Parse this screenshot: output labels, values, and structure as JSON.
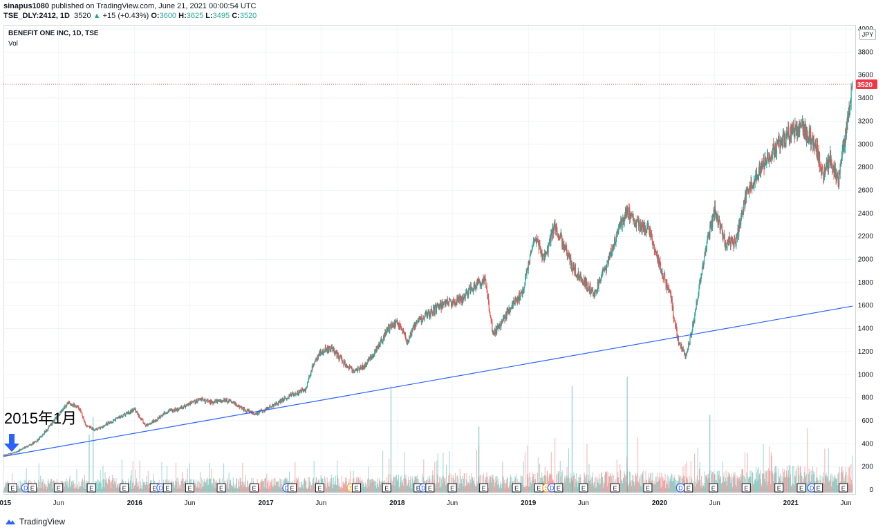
{
  "header": {
    "publisher": "sinapus1080",
    "published_text": "published on TradingView.com, June 21, 2021 00:00:54 UTC",
    "ticker": "TSE_DLY:2412, 1D",
    "last": "3520",
    "change": "+15 (+0.43%)",
    "o_label": "O:",
    "o": "3600",
    "h_label": "H:",
    "h": "3625",
    "l_label": "L:",
    "l": "3495",
    "c_label": "C:",
    "c": "3520"
  },
  "chart_title": "BENEFIT ONE INC, 1D, TSE",
  "vol_label": "Vol",
  "currency": "JPY",
  "annotation": "2015年1月",
  "branding": "TradingView",
  "colors": {
    "up": "#26a69a",
    "down": "#ef5350",
    "trendline": "#2962ff",
    "last_price": "#f23645",
    "arrow": "#2962ff",
    "earnings": "#131722",
    "dividend": "#2962ff",
    "split": "#ff9800"
  },
  "chart_data": {
    "type": "line",
    "title": "BENEFIT ONE INC, 1D, TSE",
    "ylim": [
      0,
      4000
    ],
    "y_ticks": [
      0,
      200,
      400,
      600,
      800,
      1000,
      1200,
      1400,
      1600,
      1800,
      2000,
      2200,
      2400,
      2600,
      2800,
      3000,
      3200,
      3400,
      3600,
      3800,
      4000
    ],
    "last_price": 3520,
    "x_tick_labels": [
      "2015",
      "Jun",
      "2016",
      "Jun",
      "2017",
      "Jun",
      "2018",
      "Jun",
      "2019",
      "Jun",
      "2020",
      "Jun",
      "2021",
      "Jun"
    ],
    "x_tick_dates": [
      2015.0,
      2015.42,
      2016.0,
      2016.42,
      2017.0,
      2017.42,
      2018.0,
      2018.42,
      2019.0,
      2019.42,
      2020.0,
      2020.42,
      2021.0,
      2021.42
    ],
    "x_range": [
      2015.0,
      2021.47
    ],
    "price_series": {
      "name": "Close",
      "x": [
        2015.0,
        2015.08,
        2015.15,
        2015.25,
        2015.33,
        2015.42,
        2015.5,
        2015.58,
        2015.63,
        2015.7,
        2015.8,
        2015.92,
        2016.0,
        2016.08,
        2016.15,
        2016.25,
        2016.33,
        2016.42,
        2016.5,
        2016.58,
        2016.67,
        2016.75,
        2016.83,
        2016.92,
        2017.0,
        2017.1,
        2017.2,
        2017.3,
        2017.35,
        2017.42,
        2017.5,
        2017.58,
        2017.67,
        2017.75,
        2017.83,
        2017.92,
        2018.0,
        2018.08,
        2018.15,
        2018.25,
        2018.33,
        2018.42,
        2018.5,
        2018.58,
        2018.67,
        2018.73,
        2018.8,
        2018.87,
        2018.95,
        2019.05,
        2019.12,
        2019.2,
        2019.28,
        2019.35,
        2019.42,
        2019.5,
        2019.58,
        2019.67,
        2019.75,
        2019.83,
        2019.92,
        2020.0,
        2020.08,
        2020.14,
        2020.2,
        2020.25,
        2020.3,
        2020.35,
        2020.42,
        2020.5,
        2020.58,
        2020.67,
        2020.75,
        2020.83,
        2020.92,
        2021.0,
        2021.08,
        2021.15,
        2021.2,
        2021.25,
        2021.3,
        2021.36,
        2021.42,
        2021.47
      ],
      "values": [
        300,
        320,
        360,
        420,
        520,
        650,
        760,
        700,
        560,
        520,
        580,
        650,
        700,
        560,
        600,
        680,
        700,
        750,
        790,
        760,
        780,
        760,
        700,
        660,
        700,
        760,
        830,
        870,
        1050,
        1200,
        1230,
        1120,
        1020,
        1080,
        1200,
        1380,
        1460,
        1290,
        1460,
        1530,
        1600,
        1630,
        1660,
        1770,
        1830,
        1350,
        1450,
        1600,
        1700,
        2200,
        2000,
        2300,
        2100,
        1900,
        1820,
        1700,
        1900,
        2200,
        2420,
        2300,
        2250,
        1950,
        1700,
        1300,
        1150,
        1400,
        1750,
        2100,
        2420,
        2150,
        2150,
        2600,
        2750,
        2900,
        3020,
        3100,
        3150,
        3050,
        2950,
        2700,
        2900,
        2650,
        3100,
        3520
      ]
    },
    "trendline": {
      "x": [
        2015.0,
        2021.47
      ],
      "y": [
        290,
        1595
      ]
    },
    "volume_series": {
      "name": "Vol",
      "note_spikes_x": [
        2015.65,
        2015.68,
        2017.95,
        2018.62,
        2019.33,
        2019.75,
        2020.38
      ],
      "note_spikes_y": [
        480,
        630,
        900,
        550,
        900,
        980,
        650
      ]
    },
    "events": [
      {
        "type": "E",
        "x": 2015.07
      },
      {
        "type": "D",
        "x": 2015.17
      },
      {
        "type": "E",
        "x": 2015.22
      },
      {
        "type": "E",
        "x": 2015.42
      },
      {
        "type": "E",
        "x": 2015.67
      },
      {
        "type": "E",
        "x": 2015.92
      },
      {
        "type": "E",
        "x": 2016.15
      },
      {
        "type": "D",
        "x": 2016.2
      },
      {
        "type": "E",
        "x": 2016.25
      },
      {
        "type": "E",
        "x": 2016.42
      },
      {
        "type": "E",
        "x": 2016.66
      },
      {
        "type": "E",
        "x": 2016.91
      },
      {
        "type": "D",
        "x": 2017.16
      },
      {
        "type": "E",
        "x": 2017.2
      },
      {
        "type": "E",
        "x": 2017.41
      },
      {
        "type": "S",
        "x": 2017.65
      },
      {
        "type": "E",
        "x": 2017.69
      },
      {
        "type": "E",
        "x": 2017.92
      },
      {
        "type": "E",
        "x": 2018.16
      },
      {
        "type": "D",
        "x": 2018.2
      },
      {
        "type": "E",
        "x": 2018.25
      },
      {
        "type": "E",
        "x": 2018.42
      },
      {
        "type": "E",
        "x": 2018.66
      },
      {
        "type": "E",
        "x": 2018.91
      },
      {
        "type": "E",
        "x": 2019.08
      },
      {
        "type": "S",
        "x": 2019.14
      },
      {
        "type": "D",
        "x": 2019.18
      },
      {
        "type": "E",
        "x": 2019.23
      },
      {
        "type": "E",
        "x": 2019.42
      },
      {
        "type": "E",
        "x": 2019.66
      },
      {
        "type": "E",
        "x": 2019.91
      },
      {
        "type": "D",
        "x": 2020.16
      },
      {
        "type": "E",
        "x": 2020.22
      },
      {
        "type": "E",
        "x": 2020.41
      },
      {
        "type": "E",
        "x": 2020.66
      },
      {
        "type": "E",
        "x": 2020.91
      },
      {
        "type": "E",
        "x": 2021.08
      },
      {
        "type": "D",
        "x": 2021.16
      },
      {
        "type": "E",
        "x": 2021.21
      },
      {
        "type": "E",
        "x": 2021.4
      }
    ]
  }
}
